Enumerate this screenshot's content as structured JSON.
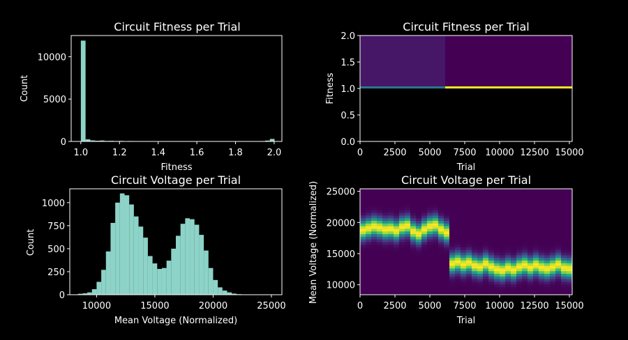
{
  "colors": {
    "background": "#000000",
    "foreground": "#ffffff",
    "hist_fill": "#8dd3c7",
    "viridis_low": "#440154",
    "viridis_high": "#fde725"
  },
  "chart_data": [
    {
      "id": "fitness_hist",
      "type": "bar",
      "title": "Circuit Fitness per Trial",
      "xlabel": "Fitness",
      "ylabel": "Count",
      "xlim": [
        0.95,
        2.04
      ],
      "ylim": [
        0,
        12500
      ],
      "xticks": [
        1.0,
        1.2,
        1.4,
        1.6,
        1.8,
        2.0
      ],
      "xtick_labels": [
        "1.0",
        "1.2",
        "1.4",
        "1.6",
        "1.8",
        "2.0"
      ],
      "yticks": [
        0,
        5000,
        10000
      ],
      "ytick_labels": [
        "0",
        "5000",
        "10000"
      ],
      "bin_edges": [
        1.0,
        1.0244,
        1.0489,
        1.0733,
        1.0978,
        1.1222,
        1.1467,
        1.1711,
        1.1956,
        1.22,
        1.2444,
        1.2689,
        1.2933,
        1.3178,
        1.3422,
        1.3667,
        1.3911,
        1.4156,
        1.44,
        1.4644,
        1.4889,
        1.5133,
        1.5378,
        1.5622,
        1.5867,
        1.6111,
        1.6356,
        1.66,
        1.6844,
        1.7089,
        1.7333,
        1.7578,
        1.7822,
        1.8067,
        1.8311,
        1.8556,
        1.88,
        1.9044,
        1.9289,
        1.9533,
        1.9778,
        2.0022
      ],
      "values": [
        11900,
        250,
        120,
        80,
        110,
        60,
        70,
        50,
        60,
        40,
        50,
        40,
        40,
        35,
        40,
        30,
        40,
        30,
        35,
        30,
        35,
        30,
        30,
        30,
        30,
        30,
        30,
        25,
        30,
        25,
        25,
        25,
        25,
        20,
        25,
        25,
        30,
        30,
        45,
        100,
        300
      ]
    },
    {
      "id": "fitness_heatmap",
      "type": "heatmap",
      "title": "Circuit Fitness per Trial",
      "xlabel": "Trial",
      "ylabel": "Fitness",
      "xlim": [
        0,
        15200
      ],
      "ylim": [
        0,
        2.0
      ],
      "xticks": [
        0,
        2500,
        5000,
        7500,
        10000,
        12500,
        15000
      ],
      "xtick_labels": [
        "0",
        "2500",
        "5000",
        "7500",
        "10000",
        "12500",
        "15000"
      ],
      "yticks": [
        0,
        0.5,
        1.0,
        1.5,
        2.0
      ],
      "ytick_labels": [
        "0.0",
        "0.5",
        "1.0",
        "1.5",
        "2.0"
      ],
      "regions": [
        {
          "x_range": [
            0,
            6100
          ],
          "y_range": [
            1.0,
            2.0
          ],
          "level": 0.06
        },
        {
          "x_range": [
            6100,
            15200
          ],
          "y_range": [
            1.0,
            2.0
          ],
          "level": 0.0
        }
      ],
      "line": {
        "y": 1.02,
        "segments": [
          {
            "x_range": [
              0,
              6100
            ],
            "level": 0.4
          },
          {
            "x_range": [
              6100,
              15200
            ],
            "level": 1.0
          }
        ]
      }
    },
    {
      "id": "voltage_hist",
      "type": "bar",
      "title": "Circuit Voltage per Trial",
      "xlabel": "Mean Voltage (Normalized)",
      "ylabel": "Count",
      "xlim": [
        7700,
        25900
      ],
      "ylim": [
        0,
        1150
      ],
      "xticks": [
        10000,
        15000,
        20000,
        25000
      ],
      "xtick_labels": [
        "10000",
        "15000",
        "20000",
        "25000"
      ],
      "yticks": [
        0,
        250,
        500,
        750,
        1000
      ],
      "ytick_labels": [
        "0",
        "250",
        "500",
        "750",
        "1000"
      ],
      "bin_start": 8400,
      "bin_width": 400,
      "values": [
        10,
        15,
        25,
        60,
        140,
        270,
        470,
        780,
        1000,
        1100,
        1080,
        980,
        850,
        740,
        620,
        420,
        340,
        280,
        290,
        370,
        500,
        640,
        770,
        830,
        820,
        760,
        650,
        480,
        290,
        160,
        80,
        45,
        25,
        12,
        6
      ]
    },
    {
      "id": "voltage_heatmap",
      "type": "heatmap",
      "title": "Circuit Voltage per Trial",
      "xlabel": "Trial",
      "ylabel": "Mean Voltage (Normalized)",
      "xlim": [
        0,
        15200
      ],
      "ylim": [
        8400,
        25400
      ],
      "xticks": [
        0,
        2500,
        5000,
        7500,
        10000,
        12500,
        15000
      ],
      "xtick_labels": [
        "0",
        "2500",
        "5000",
        "7500",
        "10000",
        "12500",
        "15000"
      ],
      "yticks": [
        10000,
        15000,
        20000,
        25000
      ],
      "ytick_labels": [
        "10000",
        "15000",
        "20000",
        "25000"
      ],
      "bin_width_x": 400,
      "bin_height_y": 425,
      "spread": 1000,
      "centers": [
        18800,
        19100,
        19400,
        19200,
        18900,
        19000,
        18700,
        19300,
        19500,
        18600,
        18200,
        18900,
        19400,
        19600,
        18900,
        18400,
        13400,
        13700,
        13300,
        13600,
        13100,
        12900,
        13400,
        12900,
        12500,
        12300,
        12700,
        12400,
        12900,
        13200,
        12800,
        13200,
        12800,
        12600,
        12900,
        13300,
        12700,
        12600
      ]
    }
  ]
}
